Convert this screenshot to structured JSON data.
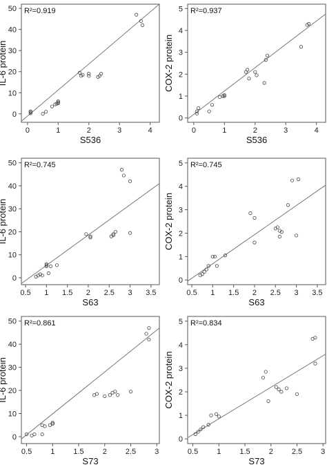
{
  "chart_data": [
    {
      "type": "scatter",
      "r2_label": "R²=0.919",
      "xlabel": "S536",
      "ylabel": "IL-6 protein",
      "xlim": [
        -0.2,
        4.3
      ],
      "ylim": [
        -4,
        52
      ],
      "xticks": [
        0,
        1,
        2,
        3,
        4
      ],
      "yticks": [
        0,
        10,
        20,
        30,
        40,
        50
      ],
      "fit": [
        [
          -0.2,
          -3.5
        ],
        [
          4.3,
          52
        ]
      ],
      "x": [
        0.1,
        0.1,
        0.1,
        0.5,
        0.6,
        0.8,
        0.9,
        0.95,
        1.0,
        1.0,
        1.0,
        1.7,
        1.75,
        1.8,
        2.0,
        2.0,
        2.3,
        2.35,
        2.4,
        3.55,
        3.7,
        3.75
      ],
      "y": [
        0.3,
        0.8,
        1.2,
        0,
        1,
        3.5,
        4.5,
        4.8,
        5,
        5.5,
        6,
        19.5,
        18,
        18.5,
        19,
        18,
        17.5,
        18,
        19,
        47,
        44,
        42
      ]
    },
    {
      "type": "scatter",
      "r2_label": "R²=0.937",
      "xlabel": "S536",
      "ylabel": "COX-2 protein",
      "xlim": [
        -0.2,
        4.3
      ],
      "ylim": [
        -0.2,
        5.2
      ],
      "xticks": [
        0,
        1,
        2,
        3,
        4
      ],
      "yticks": [
        0,
        1,
        2,
        3,
        4,
        5
      ],
      "fit": [
        [
          -0.2,
          -0.05
        ],
        [
          4.3,
          4.75
        ]
      ],
      "x": [
        0.1,
        0.1,
        0.15,
        0.5,
        0.6,
        0.85,
        0.95,
        1.0,
        1.0,
        1.7,
        1.75,
        1.8,
        2.0,
        2.05,
        2.3,
        2.35,
        2.4,
        3.5,
        3.7,
        3.75
      ],
      "y": [
        0.2,
        0.3,
        0.45,
        0.3,
        0.6,
        0.95,
        1.0,
        1.0,
        1.05,
        2.1,
        2.2,
        1.8,
        2.1,
        1.95,
        1.6,
        2.65,
        2.85,
        3.25,
        4.25,
        4.3
      ]
    },
    {
      "type": "scatter",
      "r2_label": "R²=0.745",
      "xlabel": "S63",
      "ylabel": "IL-6 protein",
      "xlim": [
        0.4,
        3.7
      ],
      "ylim": [
        -3,
        52
      ],
      "xticks": [
        0.5,
        1,
        1.5,
        2,
        2.5,
        3,
        3.5
      ],
      "yticks": [
        0,
        10,
        20,
        30,
        40,
        50
      ],
      "xtick_labels": [
        "0.5",
        "1",
        "1.5",
        "2",
        "2.5",
        "3",
        "3.5"
      ],
      "fit": [
        [
          0.4,
          -2.5
        ],
        [
          3.7,
          41
        ]
      ],
      "x": [
        0.75,
        0.8,
        0.85,
        0.9,
        1.0,
        1.0,
        1.0,
        1.05,
        1.1,
        1.25,
        1.95,
        2.05,
        2.05,
        2.55,
        2.6,
        2.6,
        2.65,
        2.8,
        2.85,
        3.0,
        3.0
      ],
      "y": [
        0.5,
        1,
        1.5,
        1,
        5,
        5.5,
        6,
        2,
        5,
        5.5,
        19,
        18,
        17.5,
        18,
        18.5,
        19,
        20,
        47,
        44.5,
        42,
        19.5
      ]
    },
    {
      "type": "scatter",
      "r2_label": "R²=0.745",
      "xlabel": "S63",
      "ylabel": "COX-2 protein",
      "xlim": [
        0.4,
        3.7
      ],
      "ylim": [
        -0.2,
        5.2
      ],
      "xticks": [
        0.5,
        1,
        1.5,
        2,
        2.5,
        3,
        3.5
      ],
      "yticks": [
        0,
        1,
        2,
        3,
        4,
        5
      ],
      "xtick_labels": [
        "0.5",
        "1",
        "1.5",
        "2",
        "2.5",
        "3",
        "3.5"
      ],
      "fit": [
        [
          0.4,
          -0.05
        ],
        [
          3.7,
          4.05
        ]
      ],
      "x": [
        0.7,
        0.75,
        0.8,
        0.85,
        0.9,
        1.0,
        1.05,
        1.1,
        1.3,
        1.9,
        2.0,
        2.0,
        2.5,
        2.55,
        2.6,
        2.6,
        2.65,
        2.8,
        2.9,
        3.0,
        3.05
      ],
      "y": [
        0.2,
        0.25,
        0.35,
        0.45,
        0.6,
        1.0,
        1.0,
        0.6,
        1.05,
        2.85,
        2.65,
        1.6,
        2.2,
        2.25,
        2.1,
        1.85,
        2.05,
        3.2,
        4.25,
        1.9,
        4.3
      ]
    },
    {
      "type": "scatter",
      "r2_label": "R²=0.861",
      "xlabel": "S73",
      "ylabel": "IL-6 protein",
      "xlim": [
        0.4,
        3.05
      ],
      "ylim": [
        -3,
        52
      ],
      "xticks": [
        0.5,
        1,
        1.5,
        2,
        2.5,
        3
      ],
      "yticks": [
        0,
        10,
        20,
        30,
        40,
        50
      ],
      "xtick_labels": [
        "0.5",
        "1",
        "1.5",
        "2",
        "2.5",
        "3"
      ],
      "fit": [
        [
          0.4,
          -1
        ],
        [
          3.05,
          47
        ]
      ],
      "x": [
        0.5,
        0.6,
        0.65,
        0.8,
        0.8,
        0.85,
        0.95,
        1.0,
        1.0,
        1.0,
        1.8,
        1.85,
        2.0,
        2.1,
        2.15,
        2.2,
        2.25,
        2.5,
        2.8,
        2.85,
        2.85
      ],
      "y": [
        1,
        0.5,
        1,
        1,
        5,
        4.5,
        5,
        5.5,
        6,
        6,
        18,
        18.5,
        17.5,
        18,
        19,
        19.5,
        18,
        19.5,
        44.5,
        47,
        42
      ]
    },
    {
      "type": "scatter",
      "r2_label": "R²=0.834",
      "xlabel": "S73",
      "ylabel": "COX-2 protein",
      "xlim": [
        0.4,
        3.05
      ],
      "ylim": [
        -0.2,
        5.2
      ],
      "xticks": [
        0.5,
        1,
        1.5,
        2,
        2.5,
        3
      ],
      "yticks": [
        0,
        1,
        2,
        3,
        4,
        5
      ],
      "xtick_labels": [
        "0.5",
        "1",
        "1.5",
        "2",
        "2.5",
        "3"
      ],
      "fit": [
        [
          0.4,
          0.05
        ],
        [
          3.05,
          3.6
        ]
      ],
      "x": [
        0.55,
        0.6,
        0.65,
        0.7,
        0.8,
        0.85,
        0.95,
        1.0,
        1.85,
        1.9,
        1.95,
        2.1,
        2.15,
        2.2,
        2.3,
        2.5,
        2.8,
        2.85,
        2.85
      ],
      "y": [
        0.2,
        0.3,
        0.4,
        0.5,
        0.6,
        1.0,
        1.05,
        0.95,
        2.6,
        2.85,
        1.6,
        2.2,
        2.1,
        2.0,
        2.15,
        1.9,
        4.25,
        3.2,
        4.3
      ]
    }
  ]
}
